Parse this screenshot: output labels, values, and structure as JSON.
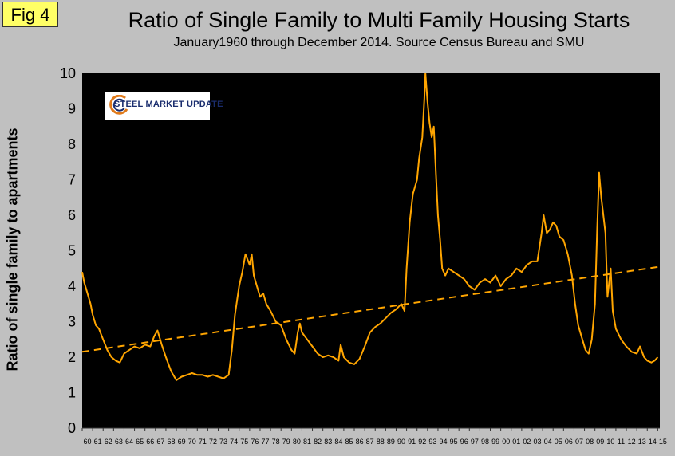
{
  "figure": {
    "label": "Fig 4",
    "logo_text": "STEEL MARKET UPDATE"
  },
  "chart_data": {
    "type": "line",
    "title": "Ratio of Single Family to Multi Family Housing Starts",
    "subtitle": "January1960 through December 2014. Source Census Bureau and SMU",
    "xlabel": "",
    "ylabel": "Ratio of single family to apartments",
    "ylim": [
      0,
      10
    ],
    "yticks": [
      0,
      1,
      2,
      3,
      4,
      5,
      6,
      7,
      8,
      9,
      10
    ],
    "xlim": [
      1960,
      2015.2
    ],
    "xticks": [
      "60",
      "61",
      "62",
      "63",
      "64",
      "65",
      "66",
      "67",
      "68",
      "69",
      "70",
      "71",
      "72",
      "73",
      "74",
      "75",
      "76",
      "77",
      "78",
      "79",
      "80",
      "81",
      "82",
      "83",
      "84",
      "85",
      "86",
      "87",
      "88",
      "89",
      "90",
      "91",
      "92",
      "93",
      "94",
      "95",
      "96",
      "97",
      "98",
      "99",
      "00",
      "01",
      "02",
      "03",
      "04",
      "05",
      "06",
      "07",
      "08",
      "09",
      "10",
      "11",
      "12",
      "13",
      "14",
      "15"
    ],
    "grid": false,
    "background": "#000000",
    "series": [
      {
        "style": "solid",
        "color": "#ffa500",
        "points": [
          [
            1960.0,
            4.4
          ],
          [
            1960.2,
            4.1
          ],
          [
            1960.5,
            3.8
          ],
          [
            1960.8,
            3.5
          ],
          [
            1961.0,
            3.2
          ],
          [
            1961.3,
            2.9
          ],
          [
            1961.6,
            2.8
          ],
          [
            1962.0,
            2.5
          ],
          [
            1962.4,
            2.2
          ],
          [
            1962.8,
            2.0
          ],
          [
            1963.2,
            1.9
          ],
          [
            1963.6,
            1.85
          ],
          [
            1964.0,
            2.1
          ],
          [
            1964.5,
            2.2
          ],
          [
            1965.0,
            2.3
          ],
          [
            1965.5,
            2.25
          ],
          [
            1966.0,
            2.35
          ],
          [
            1966.5,
            2.3
          ],
          [
            1966.9,
            2.6
          ],
          [
            1967.2,
            2.75
          ],
          [
            1967.6,
            2.35
          ],
          [
            1968.0,
            2.0
          ],
          [
            1968.5,
            1.6
          ],
          [
            1969.0,
            1.35
          ],
          [
            1969.5,
            1.45
          ],
          [
            1970.0,
            1.5
          ],
          [
            1970.5,
            1.55
          ],
          [
            1971.0,
            1.5
          ],
          [
            1971.5,
            1.5
          ],
          [
            1972.0,
            1.45
          ],
          [
            1972.5,
            1.5
          ],
          [
            1973.0,
            1.45
          ],
          [
            1973.5,
            1.4
          ],
          [
            1974.0,
            1.5
          ],
          [
            1974.3,
            2.2
          ],
          [
            1974.6,
            3.2
          ],
          [
            1975.0,
            4.0
          ],
          [
            1975.3,
            4.4
          ],
          [
            1975.6,
            4.9
          ],
          [
            1976.0,
            4.6
          ],
          [
            1976.2,
            4.9
          ],
          [
            1976.4,
            4.3
          ],
          [
            1976.7,
            4.0
          ],
          [
            1977.0,
            3.7
          ],
          [
            1977.3,
            3.8
          ],
          [
            1977.6,
            3.5
          ],
          [
            1978.0,
            3.3
          ],
          [
            1978.5,
            3.0
          ],
          [
            1979.0,
            2.9
          ],
          [
            1979.5,
            2.5
          ],
          [
            1980.0,
            2.2
          ],
          [
            1980.3,
            2.1
          ],
          [
            1980.6,
            2.7
          ],
          [
            1980.8,
            2.95
          ],
          [
            1981.0,
            2.7
          ],
          [
            1981.5,
            2.5
          ],
          [
            1982.0,
            2.3
          ],
          [
            1982.5,
            2.1
          ],
          [
            1983.0,
            2.0
          ],
          [
            1983.5,
            2.05
          ],
          [
            1984.0,
            2.0
          ],
          [
            1984.5,
            1.9
          ],
          [
            1984.7,
            2.35
          ],
          [
            1985.0,
            2.0
          ],
          [
            1985.5,
            1.85
          ],
          [
            1986.0,
            1.8
          ],
          [
            1986.5,
            1.95
          ],
          [
            1987.0,
            2.3
          ],
          [
            1987.5,
            2.7
          ],
          [
            1988.0,
            2.85
          ],
          [
            1988.5,
            2.95
          ],
          [
            1989.0,
            3.1
          ],
          [
            1989.5,
            3.25
          ],
          [
            1990.0,
            3.35
          ],
          [
            1990.5,
            3.5
          ],
          [
            1990.8,
            3.3
          ],
          [
            1991.0,
            4.5
          ],
          [
            1991.3,
            5.8
          ],
          [
            1991.6,
            6.6
          ],
          [
            1992.0,
            7.0
          ],
          [
            1992.2,
            7.6
          ],
          [
            1992.5,
            8.2
          ],
          [
            1992.7,
            9.3
          ],
          [
            1992.8,
            10.0
          ],
          [
            1993.0,
            9.2
          ],
          [
            1993.2,
            8.6
          ],
          [
            1993.4,
            8.2
          ],
          [
            1993.6,
            8.5
          ],
          [
            1993.8,
            7.2
          ],
          [
            1994.0,
            6.0
          ],
          [
            1994.2,
            5.3
          ],
          [
            1994.4,
            4.5
          ],
          [
            1994.7,
            4.3
          ],
          [
            1995.0,
            4.5
          ],
          [
            1995.5,
            4.4
          ],
          [
            1996.0,
            4.3
          ],
          [
            1996.5,
            4.2
          ],
          [
            1997.0,
            4.0
          ],
          [
            1997.5,
            3.9
          ],
          [
            1998.0,
            4.1
          ],
          [
            1998.5,
            4.2
          ],
          [
            1999.0,
            4.1
          ],
          [
            1999.5,
            4.3
          ],
          [
            2000.0,
            4.0
          ],
          [
            2000.5,
            4.2
          ],
          [
            2001.0,
            4.3
          ],
          [
            2001.5,
            4.5
          ],
          [
            2002.0,
            4.4
          ],
          [
            2002.5,
            4.6
          ],
          [
            2003.0,
            4.7
          ],
          [
            2003.5,
            4.7
          ],
          [
            2003.9,
            5.5
          ],
          [
            2004.1,
            6.0
          ],
          [
            2004.4,
            5.5
          ],
          [
            2004.7,
            5.6
          ],
          [
            2005.0,
            5.8
          ],
          [
            2005.3,
            5.7
          ],
          [
            2005.6,
            5.4
          ],
          [
            2006.0,
            5.3
          ],
          [
            2006.4,
            4.9
          ],
          [
            2006.8,
            4.3
          ],
          [
            2007.1,
            3.5
          ],
          [
            2007.4,
            2.9
          ],
          [
            2007.8,
            2.5
          ],
          [
            2008.1,
            2.2
          ],
          [
            2008.4,
            2.1
          ],
          [
            2008.7,
            2.5
          ],
          [
            2009.0,
            3.5
          ],
          [
            2009.2,
            5.5
          ],
          [
            2009.4,
            7.2
          ],
          [
            2009.6,
            6.5
          ],
          [
            2009.8,
            6.0
          ],
          [
            2010.0,
            5.5
          ],
          [
            2010.2,
            3.7
          ],
          [
            2010.5,
            4.5
          ],
          [
            2010.7,
            3.3
          ],
          [
            2011.0,
            2.8
          ],
          [
            2011.5,
            2.5
          ],
          [
            2012.0,
            2.3
          ],
          [
            2012.5,
            2.15
          ],
          [
            2013.0,
            2.1
          ],
          [
            2013.3,
            2.3
          ],
          [
            2013.7,
            2.0
          ],
          [
            2014.0,
            1.9
          ],
          [
            2014.4,
            1.85
          ],
          [
            2014.7,
            1.9
          ],
          [
            2015.0,
            2.0
          ]
        ]
      },
      {
        "style": "dashed",
        "color": "#ffa500",
        "points": [
          [
            1960.0,
            2.15
          ],
          [
            2015.2,
            4.55
          ]
        ]
      }
    ]
  }
}
